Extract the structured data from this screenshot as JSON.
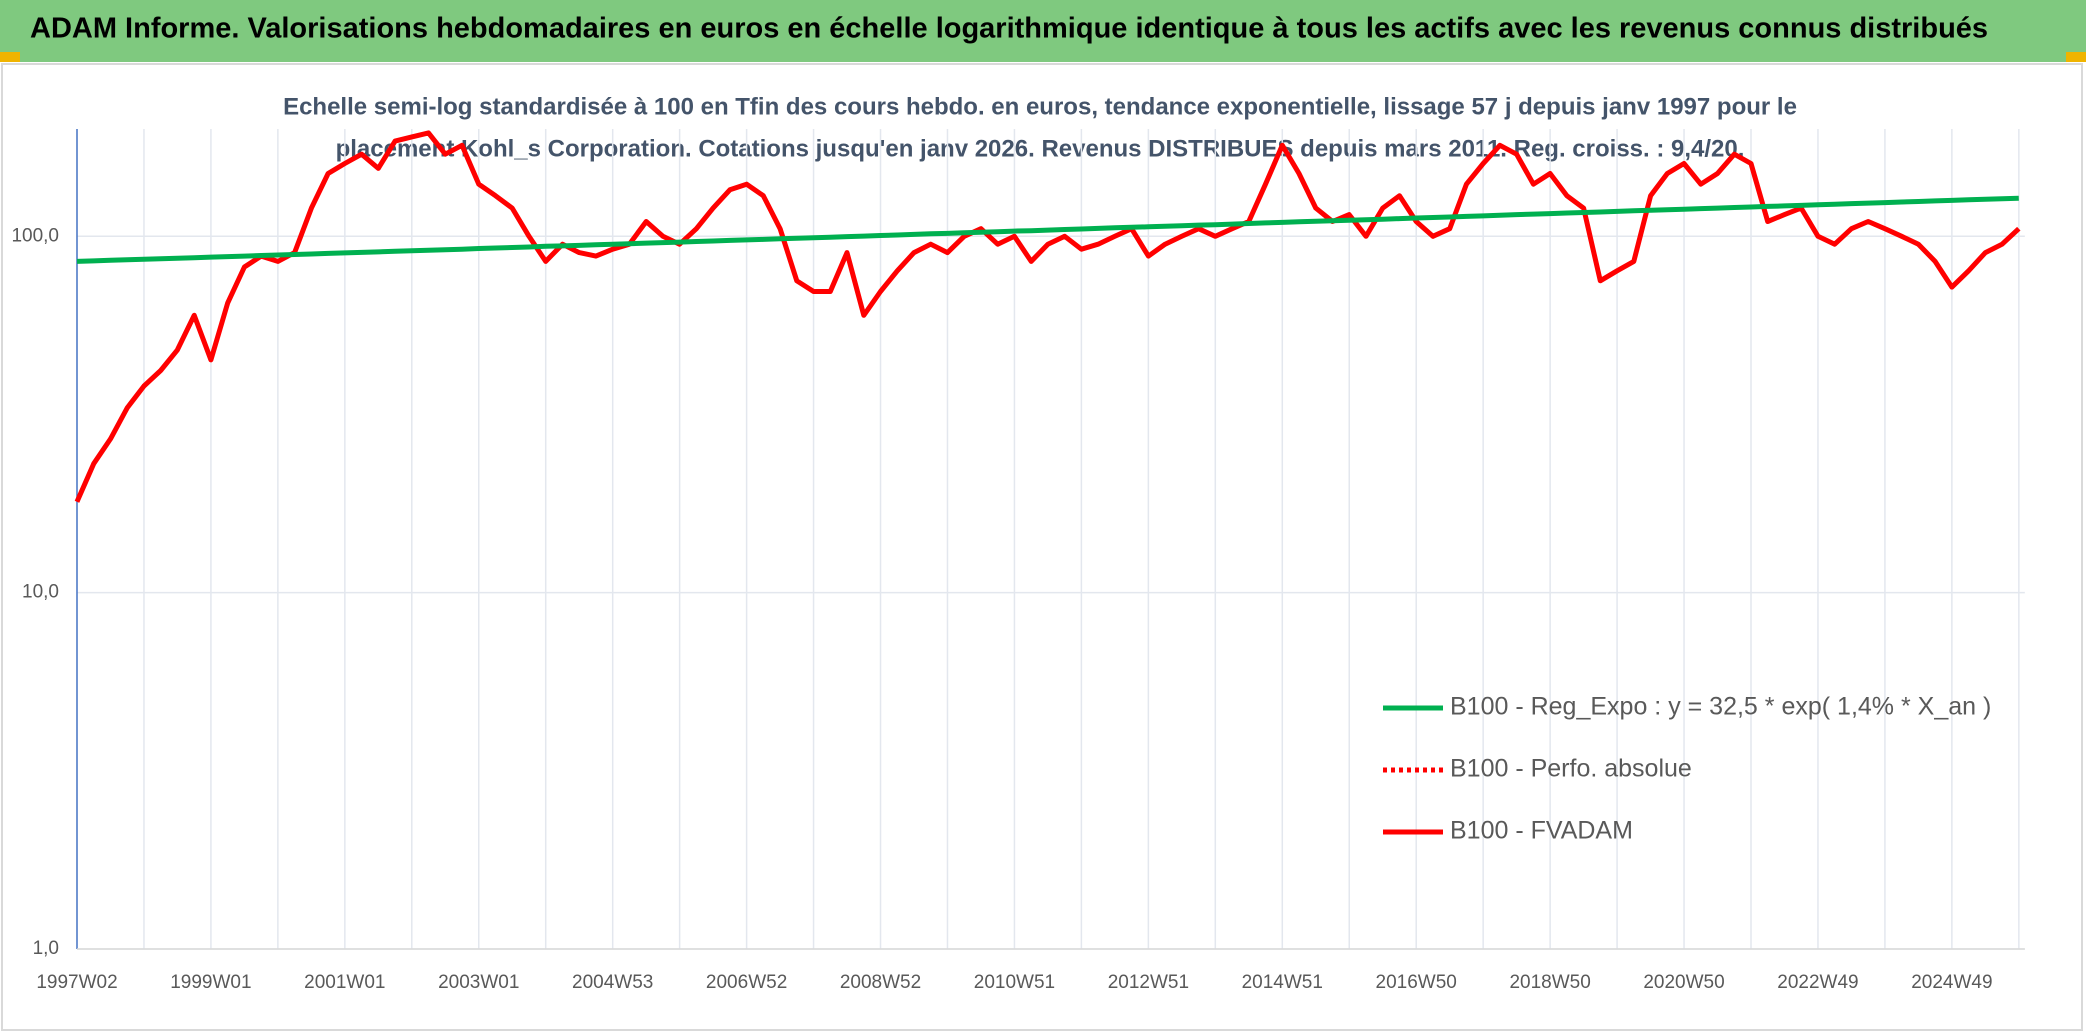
{
  "chart_data": {
    "type": "line",
    "title": "ADAM Informe. Valorisations hebdomadaires en euros en échelle logarithmique identique à tous les actifs avec les revenus connus distribués",
    "subtitle": [
      "Echelle semi-log standardisée à 100 en Tfin des cours hebdo. en euros, tendance exponentielle, lissage 57 j depuis janv 1997 pour le",
      "placement Kohl_s Corporation. Cotations jusqu'en janv 2026. Revenus DISTRIBUES depuis mars 2011. Reg. croiss. : 9,4/20."
    ],
    "log_scale": true,
    "grid": true,
    "legend": "lower right",
    "ylim": [
      1,
      200
    ],
    "yticks": [
      {
        "value": 1,
        "label": "1,0"
      },
      {
        "value": 10,
        "label": "10,0"
      },
      {
        "value": 100,
        "label": "100,0"
      }
    ],
    "categories": [
      "1997W02",
      null,
      null,
      null,
      null,
      null,
      null,
      null,
      "1999W01",
      null,
      null,
      null,
      null,
      null,
      null,
      null,
      "2001W01",
      null,
      null,
      null,
      null,
      null,
      null,
      null,
      "2003W01",
      null,
      null,
      null,
      null,
      null,
      null,
      null,
      "2004W53",
      null,
      null,
      null,
      null,
      null,
      null,
      null,
      "2006W52",
      null,
      null,
      null,
      null,
      null,
      null,
      null,
      "2008W52",
      null,
      null,
      null,
      null,
      null,
      null,
      null,
      "2010W51",
      null,
      null,
      null,
      null,
      null,
      null,
      null,
      "2012W51",
      null,
      null,
      null,
      null,
      null,
      null,
      null,
      "2014W51",
      null,
      null,
      null,
      null,
      null,
      null,
      null,
      "2016W50",
      null,
      null,
      null,
      null,
      null,
      null,
      null,
      "2018W50",
      null,
      null,
      null,
      null,
      null,
      null,
      null,
      "2020W50",
      null,
      null,
      null,
      null,
      null,
      null,
      null,
      "2022W49",
      null,
      null,
      null,
      null,
      null,
      null,
      null,
      "2024W49",
      null,
      null,
      null,
      null
    ],
    "series": [
      {
        "name": "B100 - Reg_Expo : y = 32,5 * exp( 1,4% *  X_an )",
        "color": "#00b050",
        "dash": "solid",
        "values": [
          85.0,
          85.3,
          85.6,
          85.9,
          86.2,
          86.5,
          86.8,
          87.1,
          87.4,
          87.7,
          88.0,
          88.3,
          88.6,
          88.9,
          89.2,
          89.5,
          89.8,
          90.1,
          90.4,
          90.8,
          91.1,
          91.4,
          91.7,
          92.0,
          92.4,
          92.7,
          93.0,
          93.3,
          93.7,
          94.0,
          94.3,
          94.7,
          95.0,
          95.3,
          95.7,
          96.0,
          96.3,
          96.7,
          97.0,
          97.4,
          97.7,
          98.0,
          98.4,
          98.7,
          99.1,
          99.4,
          99.8,
          100.1,
          100.5,
          100.8,
          101.2,
          101.6,
          101.9,
          102.3,
          102.6,
          103.0,
          103.4,
          103.7,
          104.1,
          104.5,
          104.8,
          105.2,
          105.6,
          106.0,
          106.3,
          106.7,
          107.1,
          107.5,
          107.8,
          108.2,
          108.6,
          109.0,
          109.4,
          109.8,
          110.2,
          110.5,
          110.9,
          111.3,
          111.7,
          112.1,
          112.5,
          112.9,
          113.3,
          113.7,
          114.1,
          114.5,
          115.0,
          115.4,
          115.8,
          116.2,
          116.6,
          117.0,
          117.4,
          117.9,
          118.3,
          118.7,
          119.1,
          119.6,
          120.0,
          120.4,
          120.8,
          121.3,
          121.7,
          122.1,
          122.6,
          123.0,
          123.5,
          123.9,
          124.3,
          124.8,
          125.2,
          125.7,
          126.1,
          126.6,
          127.0,
          127.4,
          127.9
        ]
      },
      {
        "name": "B100 - Perfo. absolue",
        "color": "#ff0000",
        "dash": "dotted",
        "values": [
          18,
          23,
          27,
          33,
          38,
          42,
          48,
          60,
          45,
          65,
          82,
          88,
          85,
          90,
          120,
          150,
          160,
          170,
          155,
          185,
          190,
          195,
          170,
          180,
          140,
          130,
          120,
          100,
          85,
          95,
          90,
          88,
          92,
          95,
          110,
          100,
          95,
          105,
          120,
          135,
          140,
          130,
          105,
          75,
          70,
          70,
          90,
          60,
          70,
          80,
          90,
          95,
          90,
          100,
          105,
          95,
          100,
          85,
          95,
          100,
          92,
          95,
          100,
          105,
          88,
          95,
          100,
          105,
          100,
          105,
          110,
          140,
          180,
          150,
          120,
          110,
          115,
          100,
          120,
          130,
          110,
          100,
          105,
          140,
          160,
          180,
          170,
          140,
          150,
          130,
          120,
          75,
          80,
          85,
          130,
          150,
          160,
          140,
          150,
          170,
          160,
          110,
          115,
          120,
          100,
          95,
          105,
          110,
          105,
          100,
          95,
          85,
          72,
          80,
          90,
          95,
          105
        ]
      },
      {
        "name": "B100 - FVADAM",
        "color": "#ff0000",
        "dash": "solid",
        "values": [
          18,
          23,
          27,
          33,
          38,
          42,
          48,
          60,
          45,
          65,
          82,
          88,
          85,
          90,
          120,
          150,
          160,
          170,
          155,
          185,
          190,
          195,
          170,
          180,
          140,
          130,
          120,
          100,
          85,
          95,
          90,
          88,
          92,
          95,
          110,
          100,
          95,
          105,
          120,
          135,
          140,
          130,
          105,
          75,
          70,
          70,
          90,
          60,
          70,
          80,
          90,
          95,
          90,
          100,
          105,
          95,
          100,
          85,
          95,
          100,
          92,
          95,
          100,
          105,
          88,
          95,
          100,
          105,
          100,
          105,
          110,
          140,
          180,
          150,
          120,
          110,
          115,
          100,
          120,
          130,
          110,
          100,
          105,
          140,
          160,
          180,
          170,
          140,
          150,
          130,
          120,
          75,
          80,
          85,
          130,
          150,
          160,
          140,
          150,
          170,
          160,
          110,
          115,
          120,
          100,
          95,
          105,
          110,
          105,
          100,
          95,
          85,
          72,
          80,
          90,
          95,
          105
        ]
      }
    ]
  }
}
